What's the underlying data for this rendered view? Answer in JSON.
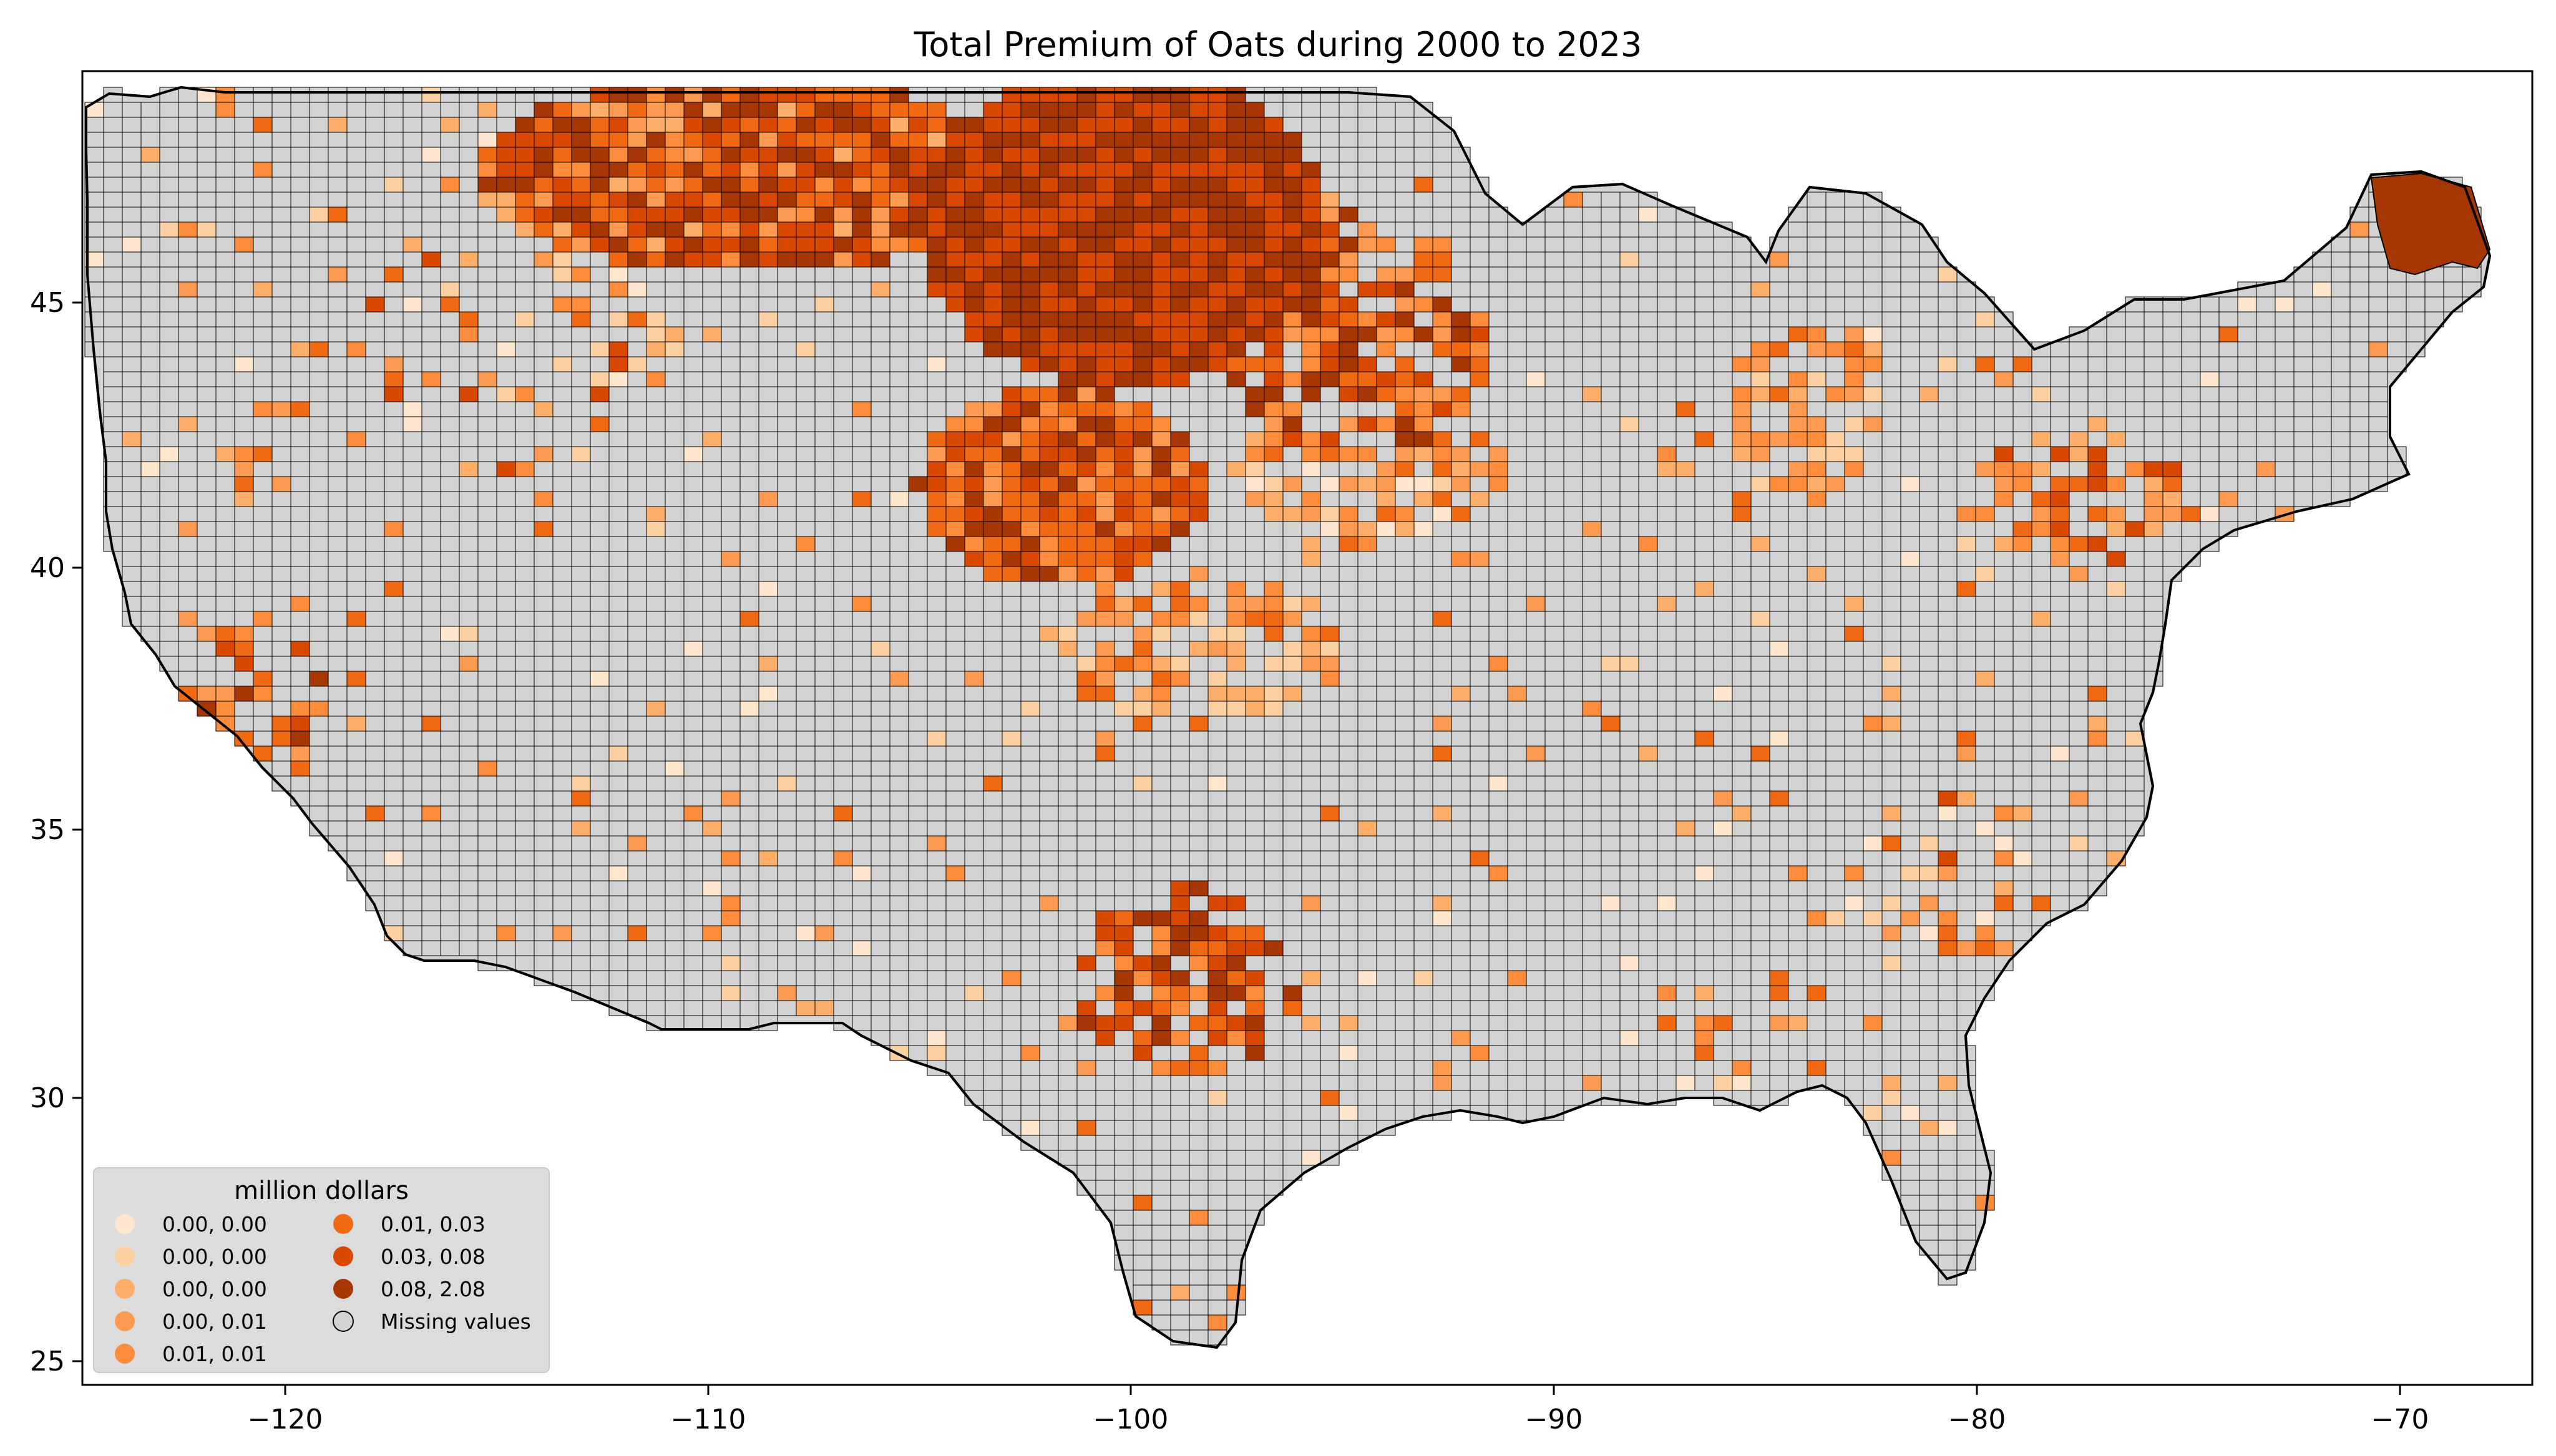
{
  "title": "Total  Premium of Oats during 2000 to 2023",
  "axes": {
    "x_ticks": [
      "−120",
      "−110",
      "−100",
      "−90",
      "−80",
      "−70"
    ],
    "y_ticks": [
      "25",
      "30",
      "35",
      "40",
      "45"
    ]
  },
  "legend": {
    "title": "million dollars",
    "placement": "lower-left",
    "items": [
      {
        "label": "0.00, 0.00",
        "color": "#fee6ce"
      },
      {
        "label": "0.00, 0.00",
        "color": "#fdd0a2"
      },
      {
        "label": "0.00, 0.00",
        "color": "#fdae6b"
      },
      {
        "label": "0.00, 0.01",
        "color": "#fd9a52"
      },
      {
        "label": "0.01, 0.01",
        "color": "#fd8d3c"
      },
      {
        "label": "0.01, 0.03",
        "color": "#f16913"
      },
      {
        "label": "0.03, 0.08",
        "color": "#d94801"
      },
      {
        "label": "0.08, 2.08",
        "color": "#a63603"
      },
      {
        "label": "Missing values",
        "color": "#d3d3d3"
      }
    ]
  },
  "chart_data": {
    "type": "choropleth",
    "title": "Total  Premium of Oats during 2000 to 2023",
    "unit": "million dollars",
    "xlim": [
      -125,
      -66.5
    ],
    "ylim": [
      24.5,
      49.5
    ],
    "missing_color": "#d3d3d3",
    "classes": [
      {
        "range": "0.00, 0.00",
        "color": "#fee6ce"
      },
      {
        "range": "0.00, 0.00",
        "color": "#fdd0a2"
      },
      {
        "range": "0.00, 0.00",
        "color": "#fdae6b"
      },
      {
        "range": "0.00, 0.01",
        "color": "#fd9a52"
      },
      {
        "range": "0.01, 0.01",
        "color": "#fd8d3c"
      },
      {
        "range": "0.01, 0.03",
        "color": "#f16913"
      },
      {
        "range": "0.03, 0.08",
        "color": "#d94801"
      },
      {
        "range": "0.08, 2.08",
        "color": "#a63603"
      }
    ]
  }
}
